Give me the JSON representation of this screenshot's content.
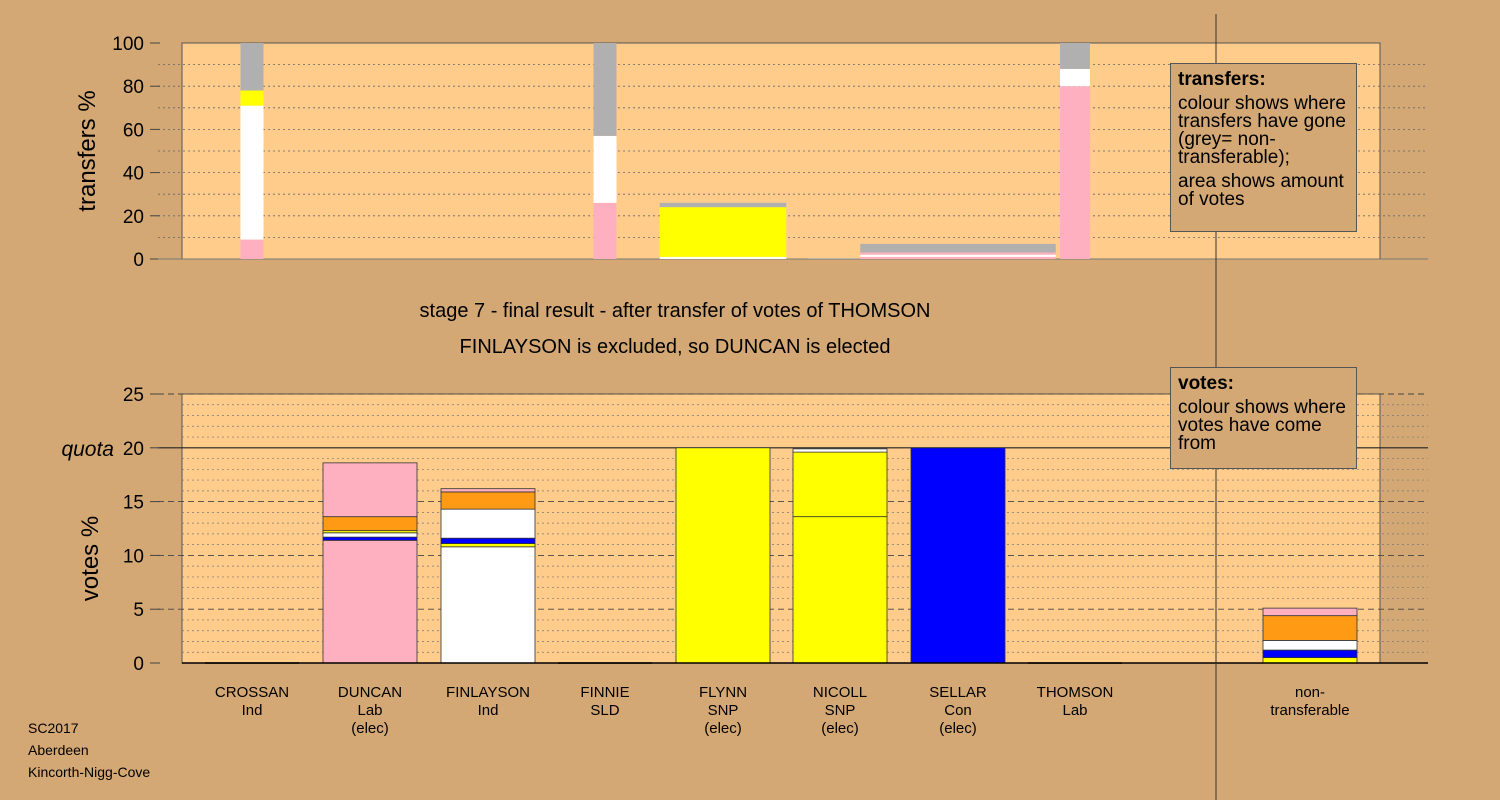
{
  "chart_data": [
    {
      "type": "bar",
      "stacked": true,
      "ylabel": "transfers %",
      "ylim": [
        0,
        100
      ],
      "yticks": [
        0,
        20,
        40,
        60,
        80,
        100
      ],
      "grid": true,
      "note": "bar width shows amount of votes transferred",
      "colors": {
        "Lab": "#ffb0c0",
        "Ind": "#ffffff",
        "SLD": "#ff9a14",
        "SNP": "#ffff00",
        "Con": "#0000ff",
        "non-transferable": "#b0b0b0"
      },
      "bars": [
        {
          "from": "CROSSAN",
          "width_share": 1,
          "segments": [
            {
              "to": "DUNCAN",
              "color": "Lab",
              "value": 9
            },
            {
              "to": "FINLAYSON",
              "color": "Ind",
              "value": 62
            },
            {
              "to": "NICOLL",
              "color": "SNP",
              "value": 7
            },
            {
              "to": "non-transferable",
              "color": "non-transferable",
              "value": 22
            }
          ]
        },
        {
          "from": "FINNIE",
          "width_share": 1,
          "segments": [
            {
              "to": "DUNCAN",
              "color": "Lab",
              "value": 26
            },
            {
              "to": "FINLAYSON",
              "color": "Ind",
              "value": 31
            },
            {
              "to": "non-transferable",
              "color": "non-transferable",
              "value": 43
            }
          ]
        },
        {
          "from": "FLYNN",
          "width_share": 5.5,
          "segments": [
            {
              "to": "FINLAYSON",
              "color": "Ind",
              "value": 1
            },
            {
              "to": "NICOLL",
              "color": "SNP",
              "value": 23
            },
            {
              "to": "non-transferable",
              "color": "non-transferable",
              "value": 2
            }
          ]
        },
        {
          "from": "NICOLL",
          "width_share": 2.8,
          "segments": [
            {
              "to": "non-transferable",
              "color": "non-transferable",
              "value": 0.4
            }
          ]
        },
        {
          "from": "SELLAR",
          "width_share": 8.5,
          "segments": [
            {
              "to": "DUNCAN",
              "color": "Lab",
              "value": 1
            },
            {
              "to": "FINLAYSON",
              "color": "Ind",
              "value": 1
            },
            {
              "to": "DUNCAN",
              "color": "Lab",
              "value": 1
            },
            {
              "to": "non-transferable",
              "color": "non-transferable",
              "value": 4
            }
          ]
        },
        {
          "from": "THOMSON",
          "width_share": 1.3,
          "segments": [
            {
              "to": "DUNCAN",
              "color": "Lab",
              "value": 80
            },
            {
              "to": "FINLAYSON",
              "color": "Ind",
              "value": 8
            },
            {
              "to": "non-transferable",
              "color": "non-transferable",
              "value": 12
            }
          ]
        }
      ]
    },
    {
      "type": "bar",
      "stacked": true,
      "ylabel": "votes %",
      "ylim": [
        0,
        25
      ],
      "yticks": [
        0,
        5,
        10,
        15,
        20,
        25
      ],
      "quota": 20,
      "quota_label": "quota",
      "grid": true,
      "categories": [
        {
          "name": "CROSSAN",
          "party": "Ind",
          "status": ""
        },
        {
          "name": "DUNCAN",
          "party": "Lab",
          "status": "(elec)"
        },
        {
          "name": "FINLAYSON",
          "party": "Ind",
          "status": ""
        },
        {
          "name": "FINNIE",
          "party": "SLD",
          "status": ""
        },
        {
          "name": "FLYNN",
          "party": "SNP",
          "status": "(elec)"
        },
        {
          "name": "NICOLL",
          "party": "SNP",
          "status": "(elec)"
        },
        {
          "name": "SELLAR",
          "party": "Con",
          "status": "(elec)"
        },
        {
          "name": "THOMSON",
          "party": "Lab",
          "status": ""
        }
      ],
      "extra_category": {
        "line1": "non-",
        "line2": "transferable"
      },
      "stacks": [
        [],
        [
          {
            "from": "Lab",
            "value": 11.4
          },
          {
            "from": "Con",
            "value": 0.3
          },
          {
            "from": "Ind",
            "value": 0.4
          },
          {
            "from": "SNP",
            "value": 0.2
          },
          {
            "from": "SLD",
            "value": 1.3
          },
          {
            "from": "Lab",
            "value": 5.0
          }
        ],
        [
          {
            "from": "Ind",
            "value": 10.8
          },
          {
            "from": "SNP",
            "value": 0.3
          },
          {
            "from": "Con",
            "value": 0.5
          },
          {
            "from": "Ind",
            "value": 2.7
          },
          {
            "from": "SLD",
            "value": 1.6
          },
          {
            "from": "Lab",
            "value": 0.3
          }
        ],
        [],
        [
          {
            "from": "SNP",
            "value": 20.0
          }
        ],
        [
          {
            "from": "SNP",
            "value": 13.6
          },
          {
            "from": "SNP",
            "value": 6.0
          },
          {
            "from": "Ind",
            "value": 0.3
          }
        ],
        [
          {
            "from": "Con",
            "value": 20.0
          }
        ],
        []
      ],
      "nontransferable_stack": [
        {
          "from": "SNP",
          "value": 0.5
        },
        {
          "from": "Con",
          "value": 0.7
        },
        {
          "from": "Ind",
          "value": 0.9
        },
        {
          "from": "SLD",
          "value": 2.3
        },
        {
          "from": "Lab",
          "value": 0.7
        }
      ]
    }
  ],
  "captions": {
    "line1": "stage 7 - final result - after transfer of votes of THOMSON",
    "line2": "FINLAYSON is excluded, so DUNCAN is elected"
  },
  "legend_transfers": {
    "title": "transfers:",
    "p1": "colour shows where transfers have gone (grey= non-transferable);",
    "p2": "area shows amount of votes"
  },
  "legend_votes": {
    "title": "votes:",
    "p1": "colour shows where votes have come from"
  },
  "footer": {
    "line1": "SC2017",
    "line2": "Aberdeen",
    "line3": "Kincorth-Nigg-Cove"
  }
}
